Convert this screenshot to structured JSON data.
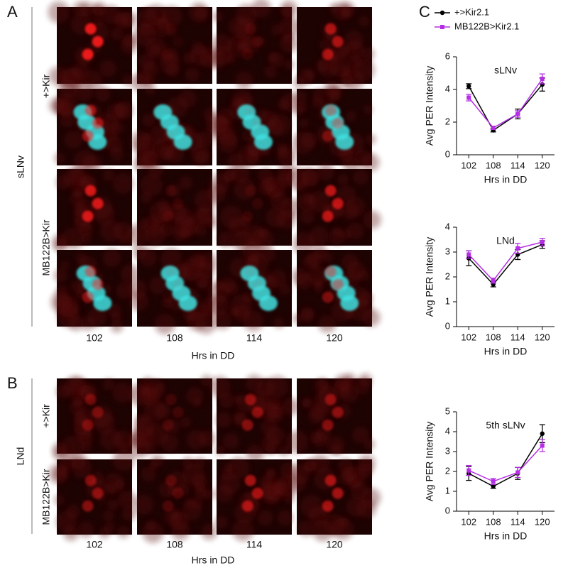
{
  "panels": [
    {
      "label": "A",
      "region": "sLNv",
      "rows": [
        "+>Kir",
        "MB122B>Kir"
      ],
      "columns": [
        "102",
        "108",
        "114",
        "120"
      ],
      "xlabel": "Hrs in DD"
    },
    {
      "label": "B",
      "region": "LNd",
      "rows": [
        "+>Kir",
        "MB122B>Kir"
      ],
      "columns": [
        "102",
        "108",
        "114",
        "120"
      ],
      "xlabel": "Hrs in DD"
    },
    {
      "label": "C"
    }
  ],
  "chart_data": [
    {
      "type": "line",
      "title": "sLNv",
      "ylabel": "Avg PER Intensity",
      "xlabel": "Hrs in DD",
      "categories": [
        "102",
        "108",
        "114",
        "120"
      ],
      "ylim": [
        0,
        6
      ],
      "yticks": [
        0,
        2,
        4,
        6
      ],
      "series": [
        {
          "name": "+>Kir2.1",
          "color": "#000000",
          "values": [
            4.2,
            1.5,
            2.5,
            4.3
          ],
          "errors": [
            0.15,
            0.1,
            0.3,
            0.4
          ]
        },
        {
          "name": "MB122B>Kir2.1",
          "color": "#b52ee6",
          "values": [
            3.5,
            1.65,
            2.5,
            4.65
          ],
          "errors": [
            0.2,
            0.1,
            0.2,
            0.3
          ]
        }
      ]
    },
    {
      "type": "line",
      "title": "LNd",
      "ylabel": "Avg PER Intensity",
      "xlabel": "Hrs in DD",
      "categories": [
        "102",
        "108",
        "114",
        "120"
      ],
      "ylim": [
        0,
        4
      ],
      "yticks": [
        0,
        1,
        2,
        3,
        4
      ],
      "series": [
        {
          "color": "#000000",
          "values": [
            2.75,
            1.7,
            2.9,
            3.3
          ],
          "errors": [
            0.3,
            0.1,
            0.2,
            0.15
          ]
        },
        {
          "color": "#b52ee6",
          "values": [
            2.9,
            1.85,
            3.15,
            3.4
          ],
          "errors": [
            0.15,
            0.1,
            0.2,
            0.15
          ]
        }
      ]
    },
    {
      "type": "line",
      "title": "5th sLNv",
      "ylabel": "Avg PER Intensity",
      "xlabel": "Hrs in DD",
      "categories": [
        "102",
        "108",
        "114",
        "120"
      ],
      "ylim": [
        0,
        5
      ],
      "yticks": [
        0,
        1,
        2,
        3,
        4,
        5
      ],
      "series": [
        {
          "color": "#000000",
          "values": [
            1.9,
            1.25,
            1.9,
            3.9
          ],
          "errors": [
            0.35,
            0.1,
            0.3,
            0.45
          ]
        },
        {
          "color": "#b52ee6",
          "values": [
            2.05,
            1.5,
            1.95,
            3.3
          ],
          "errors": [
            0.25,
            0.15,
            0.25,
            0.3
          ]
        }
      ]
    }
  ]
}
